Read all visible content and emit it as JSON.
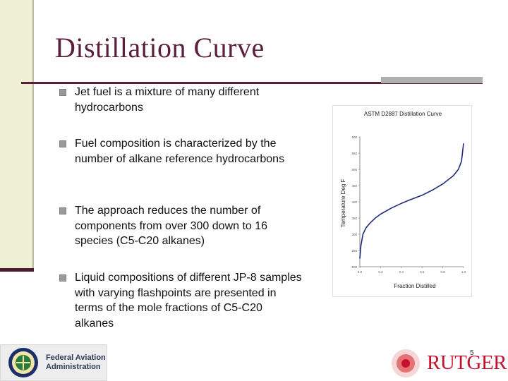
{
  "slide": {
    "title": "Distillation Curve",
    "page_number": "5",
    "accent_color": "#5a1f3a"
  },
  "bullets": [
    {
      "text": "Jet fuel is a mixture of many different hydrocarbons"
    },
    {
      "text": "Fuel composition is characterized by the number of alkane reference hydrocarbons"
    },
    {
      "text": "The approach reduces the number of components from over 300 down to 16 species (C5-C20 alkanes)"
    },
    {
      "text": "Liquid compositions of different JP-8 samples with varying flashpoints are presented in terms of the mole fractions of C5-C20 alkanes"
    }
  ],
  "logos": {
    "faa_line1": "Federal Aviation",
    "faa_line2": "Administration",
    "rutgers": "RUTGERS"
  },
  "chart_data": {
    "type": "line",
    "title": "ASTM D2887 Distillation Curve",
    "xlabel": "Fraction Distilled",
    "ylabel": "Temperature Deg F",
    "xlim": [
      0,
      1
    ],
    "ylim": [
      200,
      600
    ],
    "x_ticks": [
      "0.0",
      "0.2",
      "0.4",
      "0.6",
      "0.8",
      "1.0"
    ],
    "y_ticks": [
      "200",
      "250",
      "300",
      "350",
      "400",
      "450",
      "500",
      "550",
      "600"
    ],
    "grid": false,
    "series": [
      {
        "color": "#1f2a7a",
        "x": [
          0.0,
          0.01,
          0.03,
          0.06,
          0.1,
          0.15,
          0.2,
          0.3,
          0.4,
          0.5,
          0.6,
          0.7,
          0.8,
          0.9,
          0.95,
          0.98,
          1.0
        ],
        "y": [
          225,
          265,
          300,
          320,
          335,
          350,
          362,
          380,
          395,
          408,
          420,
          436,
          455,
          480,
          500,
          525,
          580
        ]
      }
    ]
  }
}
